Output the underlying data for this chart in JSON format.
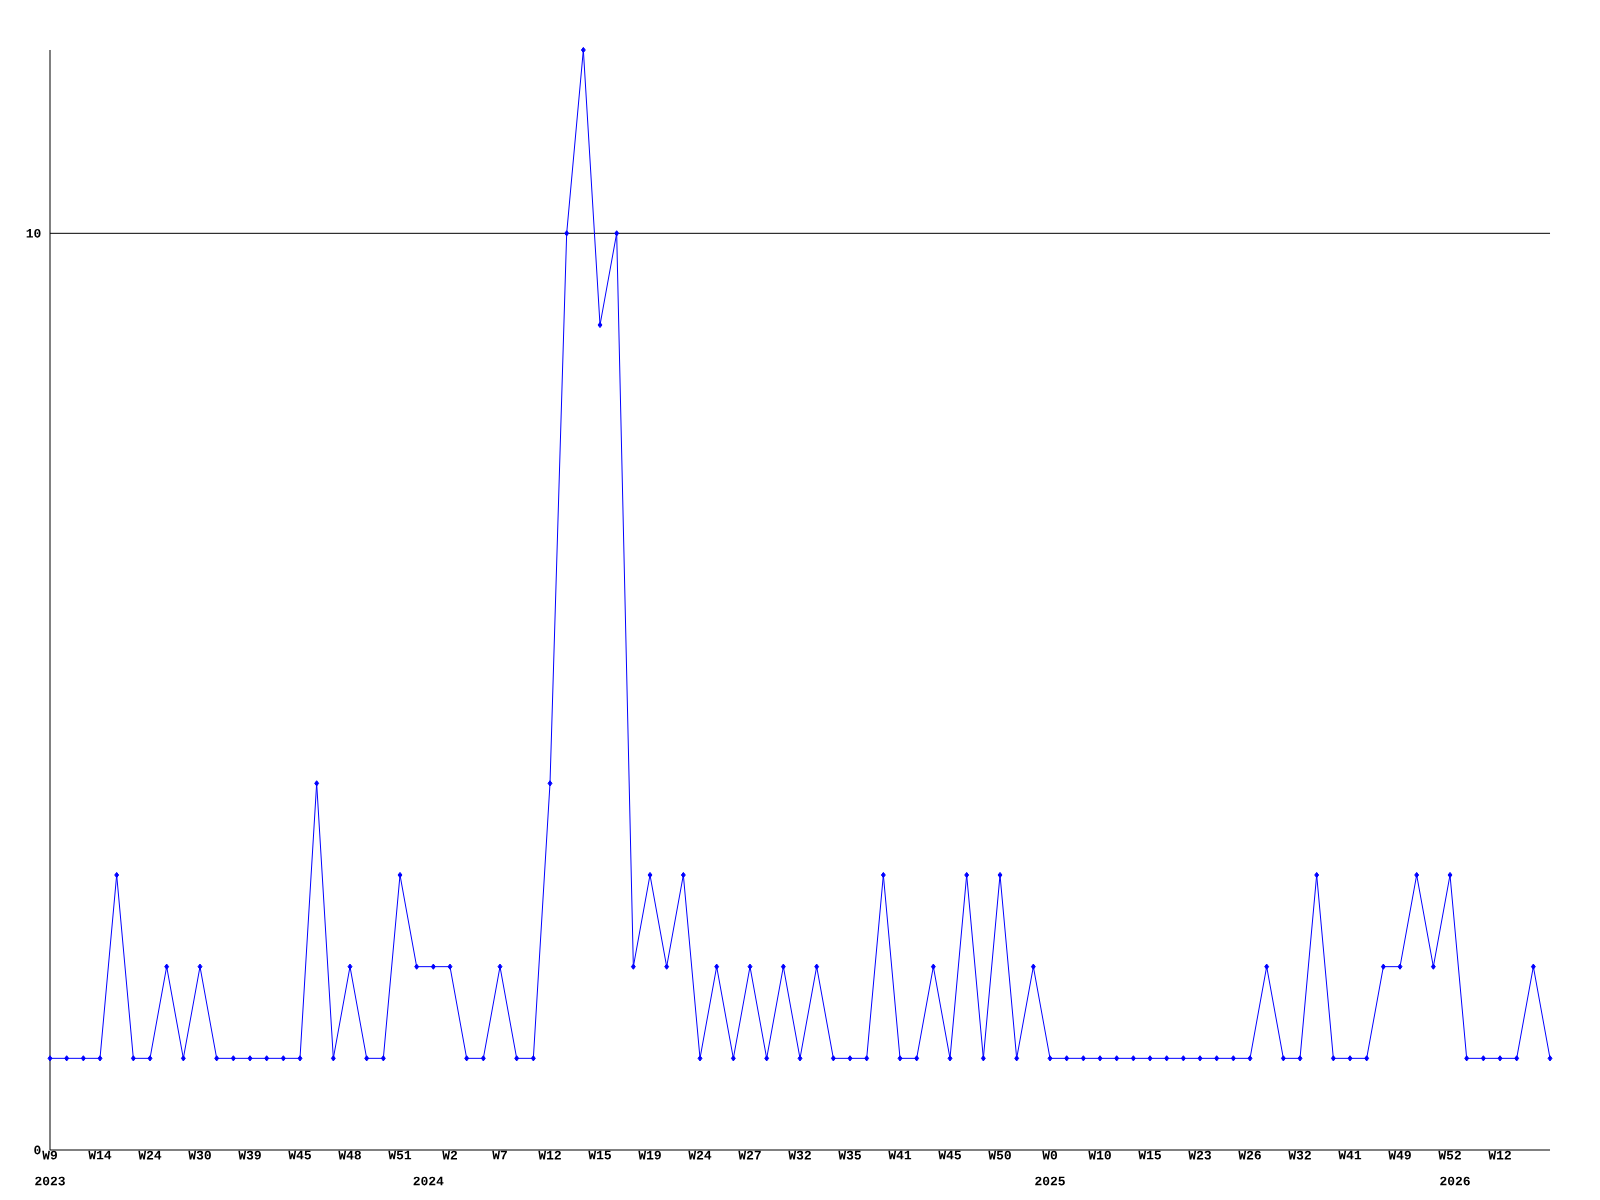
{
  "chart_data": {
    "type": "line",
    "color": "#0000ff",
    "marker": "diamond",
    "line_style": "solid",
    "categories": [
      "W9",
      null,
      null,
      "W14",
      null,
      null,
      "W24",
      null,
      null,
      "W30",
      null,
      null,
      "W39",
      null,
      null,
      "W45",
      null,
      null,
      "W48",
      null,
      null,
      "W51",
      null,
      null,
      "W2",
      null,
      null,
      "W7",
      null,
      null,
      "W12",
      null,
      null,
      "W15",
      null,
      null,
      "W19",
      null,
      null,
      "W24",
      null,
      null,
      "W27",
      null,
      null,
      "W32",
      null,
      null,
      "W35",
      null,
      null,
      "W41",
      null,
      null,
      "W45",
      null,
      null,
      "W50",
      null,
      null,
      "W0",
      null,
      null,
      "W10",
      null,
      null,
      "W15",
      null,
      null,
      "W23",
      null,
      null,
      "W26",
      null,
      null,
      "W32",
      null,
      null,
      "W41",
      null,
      null,
      "W49",
      null,
      null,
      "W52",
      null,
      null,
      "W12",
      null,
      null,
      null
    ],
    "values": [
      1,
      1,
      1,
      1,
      3,
      1,
      1,
      2,
      1,
      2,
      1,
      1,
      1,
      1,
      1,
      1,
      4,
      1,
      2,
      1,
      1,
      3,
      2,
      2,
      2,
      1,
      1,
      2,
      1,
      1,
      4,
      10,
      12,
      9,
      10,
      2,
      3,
      2,
      3,
      1,
      2,
      1,
      2,
      1,
      2,
      1,
      2,
      1,
      1,
      1,
      3,
      1,
      1,
      2,
      1,
      3,
      1,
      3,
      1,
      2,
      1,
      1,
      1,
      1,
      1,
      1,
      1,
      1,
      1,
      1,
      1,
      1,
      1,
      2,
      1,
      1,
      3,
      1,
      1,
      1,
      2,
      2,
      3,
      2,
      3,
      1,
      1,
      1,
      1,
      2,
      1
    ],
    "ylim": [
      0,
      12
    ],
    "yticks": [
      0,
      10
    ],
    "ref_lines": [
      {
        "axis": "y",
        "value": 10,
        "color": "#000000"
      }
    ],
    "annotations": [
      "2023",
      "2024",
      "2025",
      "2026"
    ]
  }
}
